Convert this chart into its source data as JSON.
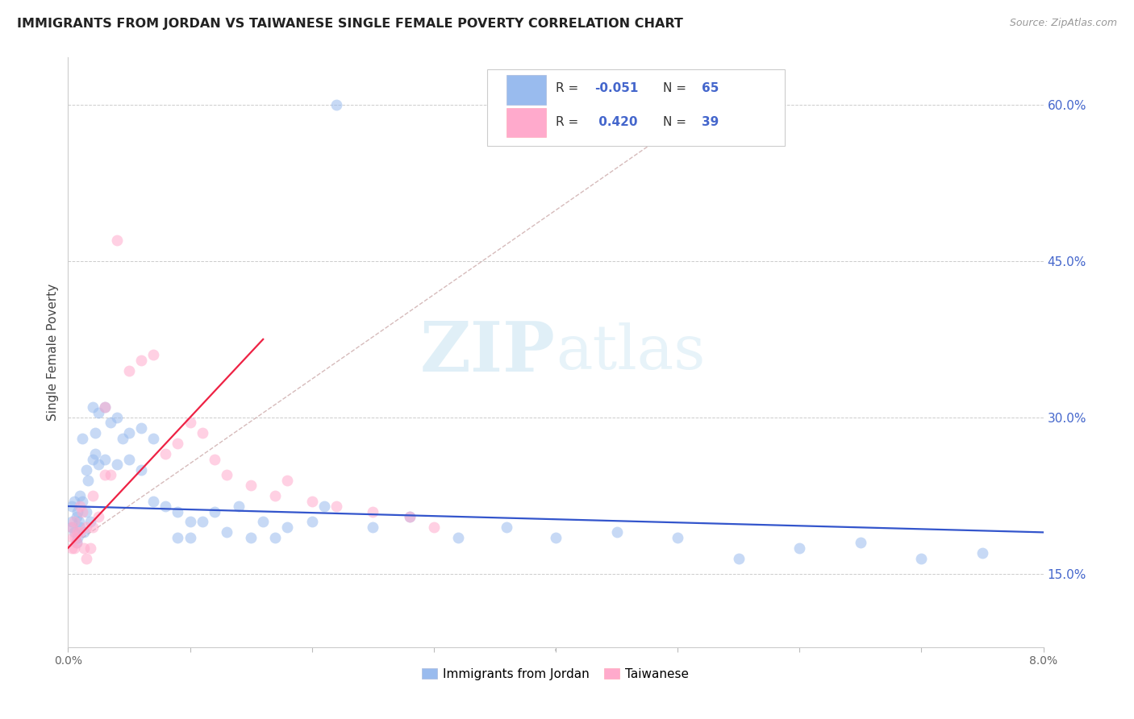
{
  "title": "IMMIGRANTS FROM JORDAN VS TAIWANESE SINGLE FEMALE POVERTY CORRELATION CHART",
  "source": "Source: ZipAtlas.com",
  "ylabel": "Single Female Poverty",
  "right_ytick_vals": [
    0.15,
    0.3,
    0.45,
    0.6
  ],
  "right_ytick_labels": [
    "15.0%",
    "30.0%",
    "45.0%",
    "60.0%"
  ],
  "xtick_vals": [
    0.0,
    0.01,
    0.02,
    0.03,
    0.04,
    0.05,
    0.06,
    0.07,
    0.08
  ],
  "xtick_labels": [
    "0.0%",
    "",
    "",
    "",
    "",
    "",
    "",
    "",
    "8.0%"
  ],
  "xlim": [
    0.0,
    0.08
  ],
  "ylim": [
    0.08,
    0.645
  ],
  "legend_r1": "-0.051",
  "legend_n1": "65",
  "legend_r2": "0.420",
  "legend_n2": "39",
  "legend_label1": "Immigrants from Jordan",
  "legend_label2": "Taiwanese",
  "blue_scatter_color": "#99BBEE",
  "pink_scatter_color": "#FFAACC",
  "blue_line_color": "#3355CC",
  "pink_line_color": "#EE2244",
  "text_blue_color": "#4466CC",
  "watermark_color": "#BBDDEE",
  "grid_color": "#CCCCCC",
  "jordan_x": [
    0.0003,
    0.0003,
    0.0003,
    0.0005,
    0.0005,
    0.0007,
    0.0007,
    0.0008,
    0.0008,
    0.0009,
    0.001,
    0.001,
    0.0012,
    0.0012,
    0.0013,
    0.0015,
    0.0015,
    0.0016,
    0.0018,
    0.002,
    0.002,
    0.0022,
    0.0022,
    0.0025,
    0.0025,
    0.003,
    0.003,
    0.0035,
    0.004,
    0.004,
    0.0045,
    0.005,
    0.005,
    0.006,
    0.006,
    0.007,
    0.007,
    0.008,
    0.009,
    0.009,
    0.01,
    0.01,
    0.011,
    0.012,
    0.013,
    0.014,
    0.015,
    0.016,
    0.017,
    0.018,
    0.02,
    0.021,
    0.022,
    0.025,
    0.028,
    0.032,
    0.036,
    0.04,
    0.045,
    0.05,
    0.055,
    0.06,
    0.065,
    0.07,
    0.075
  ],
  "jordan_y": [
    0.215,
    0.2,
    0.195,
    0.22,
    0.19,
    0.205,
    0.18,
    0.21,
    0.185,
    0.2,
    0.225,
    0.195,
    0.28,
    0.22,
    0.19,
    0.25,
    0.21,
    0.24,
    0.2,
    0.31,
    0.26,
    0.285,
    0.265,
    0.305,
    0.255,
    0.31,
    0.26,
    0.295,
    0.3,
    0.255,
    0.28,
    0.285,
    0.26,
    0.29,
    0.25,
    0.28,
    0.22,
    0.215,
    0.21,
    0.185,
    0.2,
    0.185,
    0.2,
    0.21,
    0.19,
    0.215,
    0.185,
    0.2,
    0.185,
    0.195,
    0.2,
    0.215,
    0.6,
    0.195,
    0.205,
    0.185,
    0.195,
    0.185,
    0.19,
    0.185,
    0.165,
    0.175,
    0.18,
    0.165,
    0.17
  ],
  "taiwan_x": [
    0.0003,
    0.0003,
    0.0004,
    0.0005,
    0.0005,
    0.0006,
    0.0007,
    0.0008,
    0.001,
    0.001,
    0.0012,
    0.0013,
    0.0015,
    0.0015,
    0.0018,
    0.002,
    0.002,
    0.0025,
    0.003,
    0.003,
    0.0035,
    0.004,
    0.005,
    0.006,
    0.007,
    0.008,
    0.009,
    0.01,
    0.011,
    0.012,
    0.013,
    0.015,
    0.017,
    0.018,
    0.02,
    0.022,
    0.025,
    0.028,
    0.03
  ],
  "taiwan_y": [
    0.195,
    0.175,
    0.185,
    0.2,
    0.175,
    0.185,
    0.18,
    0.19,
    0.215,
    0.19,
    0.21,
    0.175,
    0.195,
    0.165,
    0.175,
    0.225,
    0.195,
    0.205,
    0.245,
    0.31,
    0.245,
    0.47,
    0.345,
    0.355,
    0.36,
    0.265,
    0.275,
    0.295,
    0.285,
    0.26,
    0.245,
    0.235,
    0.225,
    0.24,
    0.22,
    0.215,
    0.21,
    0.205,
    0.195
  ],
  "dot_size": 100,
  "dot_alpha": 0.55
}
